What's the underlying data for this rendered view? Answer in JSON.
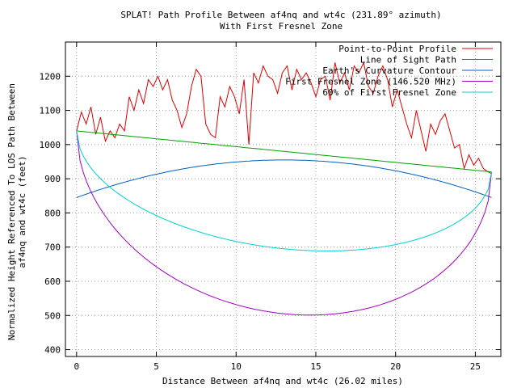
{
  "chart_data": {
    "type": "line",
    "title": "SPLAT! Path Profile Between af4nq and wt4c (231.89° azimuth)",
    "subtitle": "With First Fresnel Zone",
    "xlabel": "Distance Between af4nq and wt4c (26.02 miles)",
    "ylabel_lines": [
      "Normalized Height Referenced To LOS Path Between",
      "af4nq and wt4c (feet)"
    ],
    "xlim": [
      -0.7,
      26.6
    ],
    "ylim": [
      380,
      1300
    ],
    "x_ticks": [
      0,
      5,
      10,
      15,
      20,
      25
    ],
    "y_ticks": [
      400,
      500,
      600,
      700,
      800,
      900,
      1000,
      1100,
      1200
    ],
    "grid": true,
    "legend_position": "top-right",
    "series": [
      {
        "name": "Point-to-Point Profile",
        "color": "#e00000",
        "x": [
          0,
          0.3,
          0.6,
          0.9,
          1.2,
          1.5,
          1.8,
          2.1,
          2.4,
          2.7,
          3.0,
          3.3,
          3.6,
          3.9,
          4.2,
          4.5,
          4.8,
          5.1,
          5.4,
          5.7,
          6.0,
          6.3,
          6.6,
          6.9,
          7.2,
          7.5,
          7.8,
          8.1,
          8.4,
          8.7,
          9.0,
          9.3,
          9.6,
          9.9,
          10.2,
          10.5,
          10.8,
          11.1,
          11.4,
          11.7,
          12.0,
          12.3,
          12.6,
          12.9,
          13.2,
          13.5,
          13.8,
          14.1,
          14.4,
          14.7,
          15.0,
          15.3,
          15.6,
          15.9,
          16.2,
          16.5,
          16.8,
          17.1,
          17.4,
          17.7,
          18.0,
          18.3,
          18.6,
          18.9,
          19.2,
          19.5,
          19.8,
          20.1,
          20.4,
          20.7,
          21.0,
          21.3,
          21.6,
          21.9,
          22.2,
          22.5,
          22.8,
          23.1,
          23.4,
          23.7,
          24.0,
          24.3,
          24.6,
          24.9,
          25.2,
          25.5,
          25.8,
          26.02
        ],
        "y": [
          1040,
          1095,
          1060,
          1110,
          1030,
          1080,
          1010,
          1040,
          1020,
          1060,
          1040,
          1140,
          1100,
          1160,
          1120,
          1190,
          1170,
          1200,
          1160,
          1190,
          1130,
          1100,
          1050,
          1090,
          1170,
          1220,
          1200,
          1060,
          1030,
          1020,
          1140,
          1110,
          1170,
          1140,
          1090,
          1190,
          1000,
          1210,
          1180,
          1230,
          1200,
          1190,
          1150,
          1210,
          1230,
          1160,
          1220,
          1190,
          1210,
          1180,
          1140,
          1190,
          1200,
          1130,
          1240,
          1180,
          1210,
          1160,
          1230,
          1210,
          1240,
          1170,
          1150,
          1200,
          1230,
          1190,
          1110,
          1160,
          1110,
          1060,
          1020,
          1100,
          1040,
          980,
          1060,
          1030,
          1070,
          1090,
          1040,
          990,
          1000,
          930,
          970,
          940,
          960,
          930,
          920,
          915
        ]
      },
      {
        "name": "Line of Sight Path",
        "color": "#00a000",
        "fn": "los",
        "y_start": 1040,
        "y_end": 920
      },
      {
        "name": "Earth's Curvature Contour",
        "color": "#0060c0",
        "fn": "curvature",
        "y_start": 845,
        "y_mid": 955,
        "y_end": 845
      },
      {
        "name": "First Fresnel Zone (146.520 MHz)",
        "color": "#a000c0",
        "fn": "fresnel",
        "depth": 475
      },
      {
        "name": "60% of First Fresnel Zone",
        "color": "#00d0d0",
        "fn": "fresnel",
        "depth": 285
      }
    ]
  }
}
